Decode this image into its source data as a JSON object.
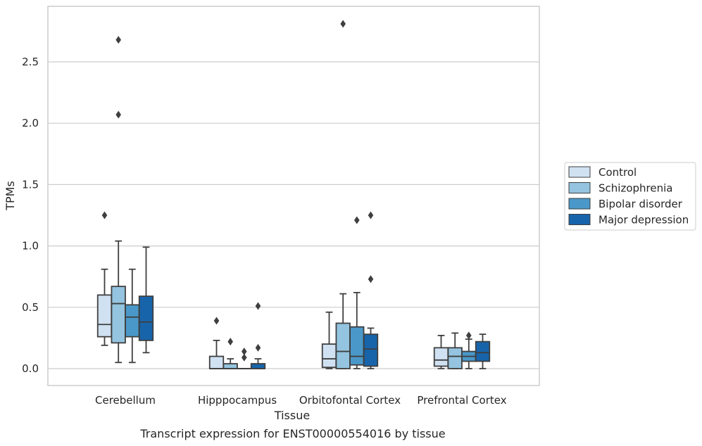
{
  "caption": "Transcript expression for ENST00000554016 by tissue",
  "chart_data": {
    "type": "box",
    "xlabel": "Tissue",
    "ylabel": "TPMs",
    "ylim": [
      -0.13,
      2.95
    ],
    "yticks": [
      0.0,
      0.5,
      1.0,
      1.5,
      2.0,
      2.5
    ],
    "ytick_labels": [
      "0.0",
      "0.5",
      "1.0",
      "1.5",
      "2.0",
      "2.5"
    ],
    "grid": "horizontal",
    "legend_position": "right",
    "categories": [
      "Cerebellum",
      "Hipppocampus",
      "Orbitofontal Cortex",
      "Prefrontal Cortex"
    ],
    "series": [
      {
        "name": "Control",
        "color": "#d0e1f2",
        "boxes": [
          {
            "whislo": 0.19,
            "q1": 0.26,
            "med": 0.36,
            "q3": 0.6,
            "whishi": 0.81,
            "fliers": [
              1.25
            ]
          },
          {
            "whislo": 0.0,
            "q1": 0.0,
            "med": 0.0,
            "q3": 0.1,
            "whishi": 0.23,
            "fliers": [
              0.39
            ]
          },
          {
            "whislo": 0.0,
            "q1": 0.01,
            "med": 0.08,
            "q3": 0.2,
            "whishi": 0.46,
            "fliers": []
          },
          {
            "whislo": 0.0,
            "q1": 0.02,
            "med": 0.07,
            "q3": 0.17,
            "whishi": 0.27,
            "fliers": []
          }
        ]
      },
      {
        "name": "Schizophrenia",
        "color": "#94c4df",
        "boxes": [
          {
            "whislo": 0.05,
            "q1": 0.21,
            "med": 0.53,
            "q3": 0.67,
            "whishi": 1.04,
            "fliers": [
              2.07,
              2.68
            ]
          },
          {
            "whislo": 0.0,
            "q1": 0.0,
            "med": 0.0,
            "q3": 0.04,
            "whishi": 0.08,
            "fliers": [
              0.22
            ]
          },
          {
            "whislo": 0.0,
            "q1": 0.0,
            "med": 0.14,
            "q3": 0.37,
            "whishi": 0.61,
            "fliers": [
              2.81
            ]
          },
          {
            "whislo": 0.0,
            "q1": 0.0,
            "med": 0.1,
            "q3": 0.17,
            "whishi": 0.29,
            "fliers": []
          }
        ]
      },
      {
        "name": "Bipolar disorder",
        "color": "#4a98c9",
        "boxes": [
          {
            "whislo": 0.05,
            "q1": 0.26,
            "med": 0.42,
            "q3": 0.52,
            "whishi": 0.81,
            "fliers": []
          },
          {
            "whislo": 0.0,
            "q1": 0.0,
            "med": 0.0,
            "q3": 0.0,
            "whishi": 0.0,
            "fliers": [
              0.09,
              0.14
            ]
          },
          {
            "whislo": 0.0,
            "q1": 0.03,
            "med": 0.1,
            "q3": 0.34,
            "whishi": 0.62,
            "fliers": [
              1.21
            ]
          },
          {
            "whislo": 0.0,
            "q1": 0.06,
            "med": 0.1,
            "q3": 0.14,
            "whishi": 0.24,
            "fliers": [
              0.27
            ]
          }
        ]
      },
      {
        "name": "Major depression",
        "color": "#1764ab",
        "boxes": [
          {
            "whislo": 0.13,
            "q1": 0.23,
            "med": 0.38,
            "q3": 0.59,
            "whishi": 0.99,
            "fliers": []
          },
          {
            "whislo": 0.0,
            "q1": 0.0,
            "med": 0.0,
            "q3": 0.04,
            "whishi": 0.08,
            "fliers": [
              0.17,
              0.51
            ]
          },
          {
            "whislo": 0.0,
            "q1": 0.02,
            "med": 0.16,
            "q3": 0.28,
            "whishi": 0.33,
            "fliers": [
              0.73,
              1.25
            ]
          },
          {
            "whislo": 0.0,
            "q1": 0.06,
            "med": 0.13,
            "q3": 0.22,
            "whishi": 0.28,
            "fliers": []
          }
        ]
      }
    ]
  }
}
